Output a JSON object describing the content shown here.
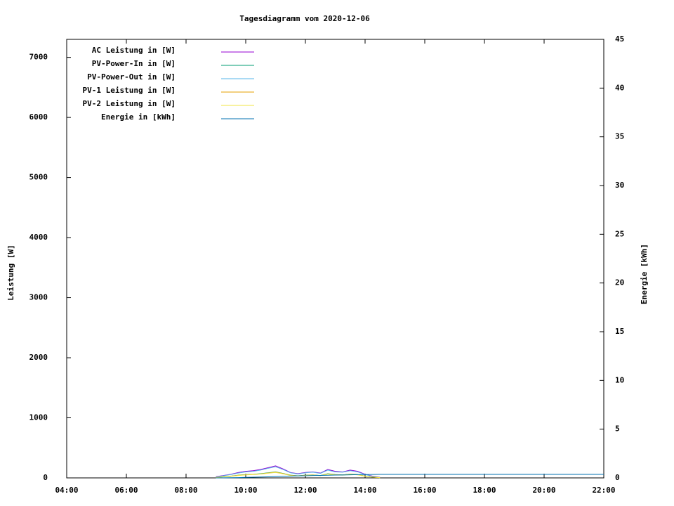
{
  "chart_data": {
    "type": "line",
    "title": "Tagesdiagramm vom 2020-12-06",
    "y_label": "Leistung [W]",
    "y2_label": "Energie [kWh]",
    "xlim": [
      4,
      22
    ],
    "ylim": [
      0,
      7300
    ],
    "y2lim": [
      0,
      45
    ],
    "xticks": [
      {
        "value": 4,
        "label": "04:00"
      },
      {
        "value": 6,
        "label": "06:00"
      },
      {
        "value": 8,
        "label": "08:00"
      },
      {
        "value": 10,
        "label": "10:00"
      },
      {
        "value": 12,
        "label": "12:00"
      },
      {
        "value": 14,
        "label": "14:00"
      },
      {
        "value": 16,
        "label": "16:00"
      },
      {
        "value": 18,
        "label": "18:00"
      },
      {
        "value": 20,
        "label": "20:00"
      },
      {
        "value": 22,
        "label": "22:00"
      }
    ],
    "yticks": [
      0,
      1000,
      2000,
      3000,
      4000,
      5000,
      6000,
      7000
    ],
    "y2ticks": [
      0,
      5,
      10,
      15,
      20,
      25,
      30,
      35,
      40,
      45
    ],
    "legend": "top-left",
    "x": [
      9,
      9.25,
      9.5,
      9.75,
      10,
      10.25,
      10.5,
      10.75,
      11,
      11.25,
      11.5,
      11.75,
      12,
      12.25,
      12.5,
      12.75,
      13,
      13.25,
      13.5,
      13.75,
      14,
      14.25,
      14.5,
      14.75,
      15,
      15.25,
      15.5,
      15.75,
      16,
      16.25,
      16.5,
      16.75,
      17,
      17.25,
      17.5,
      17.75,
      18,
      18.25,
      18.5,
      18.75,
      19,
      19.25,
      19.5,
      19.75,
      20,
      20.25,
      20.5,
      20.75,
      21,
      21.25,
      21.5,
      21.75,
      22
    ],
    "series": [
      {
        "name": "AC Leistung in [W]",
        "color": "#9400d3",
        "values": [
          20,
          40,
          60,
          90,
          110,
          120,
          140,
          170,
          200,
          150,
          90,
          70,
          90,
          100,
          80,
          140,
          110,
          100,
          130,
          110,
          60,
          30,
          10,
          null,
          null,
          null,
          null,
          null,
          null,
          null,
          null,
          null,
          null,
          null,
          null,
          null,
          null,
          null,
          null,
          null,
          null,
          null,
          null,
          null,
          null,
          null,
          null,
          null,
          null,
          null,
          null,
          null,
          null
        ]
      },
      {
        "name": "PV-Power-In in [W]",
        "color": "#009e73",
        "values": [
          10,
          20,
          30,
          45,
          55,
          60,
          70,
          85,
          100,
          75,
          45,
          35,
          45,
          50,
          40,
          70,
          55,
          50,
          65,
          55,
          30,
          15,
          5,
          null,
          null,
          null,
          null,
          null,
          null,
          null,
          null,
          null,
          null,
          null,
          null,
          null,
          null,
          null,
          null,
          null,
          null,
          null,
          null,
          null,
          null,
          null,
          null,
          null,
          null,
          null,
          null,
          null,
          null
        ]
      },
      {
        "name": "PV-Power-Out in [W]",
        "color": "#56b4e9",
        "values": [
          15,
          35,
          55,
          80,
          100,
          110,
          130,
          160,
          185,
          140,
          85,
          65,
          85,
          95,
          75,
          130,
          100,
          95,
          120,
          100,
          55,
          25,
          8,
          null,
          null,
          null,
          null,
          null,
          null,
          null,
          null,
          null,
          null,
          null,
          null,
          null,
          null,
          null,
          null,
          null,
          null,
          null,
          null,
          null,
          null,
          null,
          null,
          null,
          null,
          null,
          null,
          null,
          null
        ]
      },
      {
        "name": "PV-1 Leistung in [W]",
        "color": "#e69f00",
        "values": [
          8,
          18,
          28,
          42,
          52,
          58,
          66,
          80,
          95,
          72,
          42,
          33,
          42,
          48,
          38,
          66,
          52,
          48,
          62,
          52,
          28,
          14,
          4,
          null,
          null,
          null,
          null,
          null,
          null,
          null,
          null,
          null,
          null,
          null,
          null,
          null,
          null,
          null,
          null,
          null,
          null,
          null,
          null,
          null,
          null,
          null,
          null,
          null,
          null,
          null,
          null,
          null,
          null
        ]
      },
      {
        "name": "PV-2 Leistung in [W]",
        "color": "#f0e442",
        "values": [
          7,
          17,
          27,
          40,
          50,
          55,
          64,
          78,
          90,
          68,
          40,
          31,
          40,
          46,
          36,
          64,
          50,
          46,
          60,
          50,
          27,
          13,
          4,
          null,
          null,
          null,
          null,
          null,
          null,
          null,
          null,
          null,
          null,
          null,
          null,
          null,
          null,
          null,
          null,
          null,
          null,
          null,
          null,
          null,
          null,
          null,
          null,
          null,
          null,
          null,
          null,
          null,
          null
        ]
      },
      {
        "name": "Energie in [kWh]",
        "color": "#0072b2",
        "axis": "y2",
        "values": [
          0,
          0.01,
          0.02,
          0.03,
          0.05,
          0.07,
          0.09,
          0.11,
          0.14,
          0.17,
          0.19,
          0.21,
          0.22,
          0.24,
          0.25,
          0.27,
          0.29,
          0.3,
          0.32,
          0.33,
          0.34,
          0.35,
          0.36,
          0.36,
          0.36,
          0.36,
          0.36,
          0.36,
          0.36,
          0.36,
          0.36,
          0.36,
          0.36,
          0.36,
          0.36,
          0.36,
          0.36,
          0.36,
          0.36,
          0.36,
          0.36,
          0.36,
          0.36,
          0.36,
          0.36,
          0.36,
          0.36,
          0.36,
          0.36,
          0.36,
          0.36,
          0.36,
          0.36
        ]
      }
    ]
  }
}
